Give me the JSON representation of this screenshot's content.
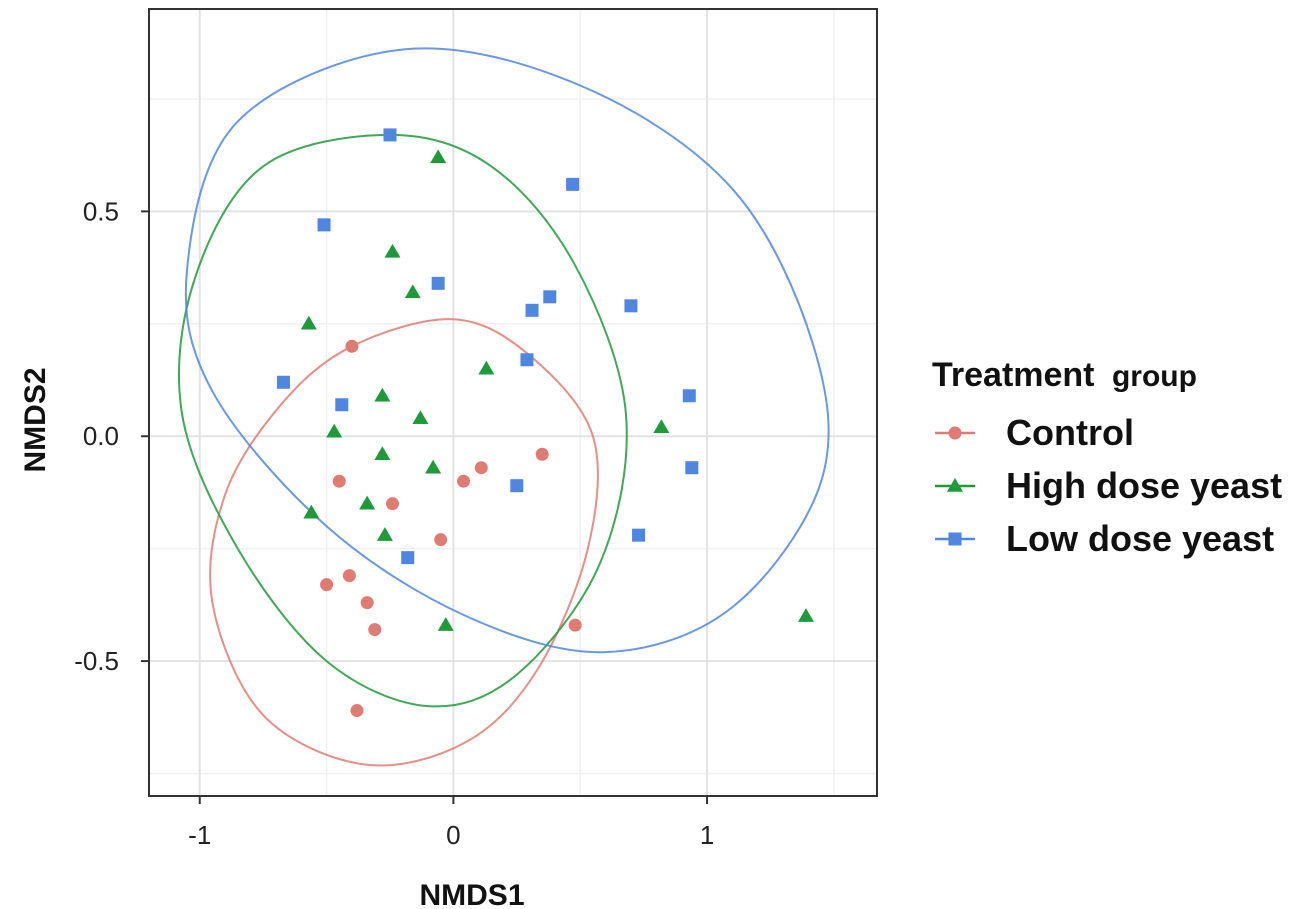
{
  "chart_data": {
    "type": "scatter",
    "title": "",
    "xlabel": "NMDS1",
    "ylabel": "NMDS2",
    "xlim": [
      -1.2,
      1.67
    ],
    "ylim": [
      -0.8,
      0.95
    ],
    "xticks": [
      -1,
      0,
      1
    ],
    "xtick_labels": [
      "-1",
      "0",
      "1"
    ],
    "yticks": [
      -0.5,
      0.0,
      0.5
    ],
    "ytick_labels": [
      "-0.5",
      "0.0",
      "0.5"
    ],
    "grid": true,
    "legend": {
      "title_main": "Treatment",
      "title_sub": "group",
      "placement": "right"
    },
    "series": [
      {
        "name": "Control",
        "color": "#e07b73",
        "marker": "circle",
        "points": [
          [
            -0.4,
            0.2
          ],
          [
            -0.45,
            -0.1
          ],
          [
            -0.24,
            -0.15
          ],
          [
            -0.05,
            -0.23
          ],
          [
            0.04,
            -0.1
          ],
          [
            0.11,
            -0.07
          ],
          [
            0.35,
            -0.04
          ],
          [
            -0.5,
            -0.33
          ],
          [
            -0.41,
            -0.31
          ],
          [
            -0.34,
            -0.37
          ],
          [
            -0.31,
            -0.43
          ],
          [
            0.48,
            -0.42
          ],
          [
            -0.38,
            -0.61
          ]
        ],
        "ellipse": {
          "points": [
            [
              0.0,
              0.26
            ],
            [
              0.3,
              0.18
            ],
            [
              0.55,
              0.0
            ],
            [
              0.53,
              -0.25
            ],
            [
              0.33,
              -0.52
            ],
            [
              0.05,
              -0.68
            ],
            [
              -0.35,
              -0.73
            ],
            [
              -0.75,
              -0.62
            ],
            [
              -0.95,
              -0.37
            ],
            [
              -0.9,
              -0.13
            ],
            [
              -0.68,
              0.07
            ],
            [
              -0.4,
              0.2
            ]
          ]
        }
      },
      {
        "name": "High dose yeast",
        "color": "#1f9a3a",
        "marker": "triangle",
        "points": [
          [
            -0.06,
            0.62
          ],
          [
            -0.24,
            0.41
          ],
          [
            -0.16,
            0.32
          ],
          [
            -0.57,
            0.25
          ],
          [
            0.13,
            0.15
          ],
          [
            -0.28,
            0.09
          ],
          [
            -0.13,
            0.04
          ],
          [
            -0.47,
            0.01
          ],
          [
            -0.28,
            -0.04
          ],
          [
            -0.08,
            -0.07
          ],
          [
            -0.34,
            -0.15
          ],
          [
            -0.56,
            -0.17
          ],
          [
            -0.27,
            -0.22
          ],
          [
            0.82,
            0.02
          ],
          [
            -0.03,
            -0.42
          ],
          [
            1.39,
            -0.4
          ]
        ],
        "ellipse": {
          "points": [
            [
              -0.25,
              0.67
            ],
            [
              0.15,
              0.6
            ],
            [
              0.48,
              0.38
            ],
            [
              0.68,
              0.05
            ],
            [
              0.58,
              -0.28
            ],
            [
              0.25,
              -0.53
            ],
            [
              -0.1,
              -0.6
            ],
            [
              -0.5,
              -0.5
            ],
            [
              -0.85,
              -0.25
            ],
            [
              -1.07,
              0.05
            ],
            [
              -1.02,
              0.35
            ],
            [
              -0.75,
              0.6
            ]
          ]
        }
      },
      {
        "name": "Low dose yeast",
        "color": "#4f86e0",
        "marker": "square",
        "points": [
          [
            -0.25,
            0.67
          ],
          [
            0.47,
            0.56
          ],
          [
            -0.51,
            0.47
          ],
          [
            -0.06,
            0.34
          ],
          [
            0.38,
            0.31
          ],
          [
            0.31,
            0.28
          ],
          [
            0.7,
            0.29
          ],
          [
            -0.67,
            0.12
          ],
          [
            0.29,
            0.17
          ],
          [
            -0.44,
            0.07
          ],
          [
            0.93,
            0.09
          ],
          [
            0.94,
            -0.07
          ],
          [
            0.25,
            -0.11
          ],
          [
            -0.18,
            -0.27
          ],
          [
            0.73,
            -0.22
          ]
        ],
        "ellipse": {
          "points": [
            [
              -0.2,
              0.86
            ],
            [
              0.5,
              0.78
            ],
            [
              1.1,
              0.55
            ],
            [
              1.42,
              0.2
            ],
            [
              1.45,
              -0.1
            ],
            [
              1.1,
              -0.38
            ],
            [
              0.6,
              -0.48
            ],
            [
              0.05,
              -0.4
            ],
            [
              -0.5,
              -0.2
            ],
            [
              -0.95,
              0.1
            ],
            [
              -1.05,
              0.37
            ],
            [
              -0.85,
              0.7
            ]
          ]
        }
      }
    ]
  }
}
